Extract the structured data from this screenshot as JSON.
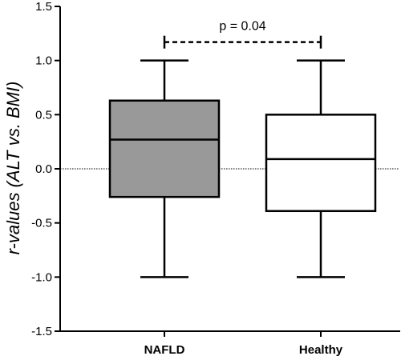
{
  "chart_data": {
    "type": "box",
    "title": "",
    "xlabel": "",
    "ylabel": "r-values (ALT vs. BMI)",
    "ylim": [
      -1.5,
      1.5
    ],
    "yticks": [
      1.5,
      1.0,
      0.5,
      0.0,
      -0.5,
      -1.0,
      -1.5
    ],
    "ytick_labels": [
      "1.5",
      "1.0",
      "0.5",
      "0.0",
      "-0.5",
      "-1.0",
      "-1.5"
    ],
    "reference_line": 0.0,
    "categories": [
      "NAFLD",
      "Healthy"
    ],
    "boxes": [
      {
        "category": "NAFLD",
        "min": -1.0,
        "q1": -0.26,
        "median": 0.27,
        "q3": 0.63,
        "max": 1.0,
        "fill": "#999999"
      },
      {
        "category": "Healthy",
        "min": -1.0,
        "q1": -0.39,
        "median": 0.09,
        "q3": 0.5,
        "max": 1.0,
        "fill": "#ffffff"
      }
    ],
    "significance": {
      "label": "p = 0.04",
      "between": [
        "NAFLD",
        "Healthy"
      ],
      "y": 1.17
    }
  }
}
